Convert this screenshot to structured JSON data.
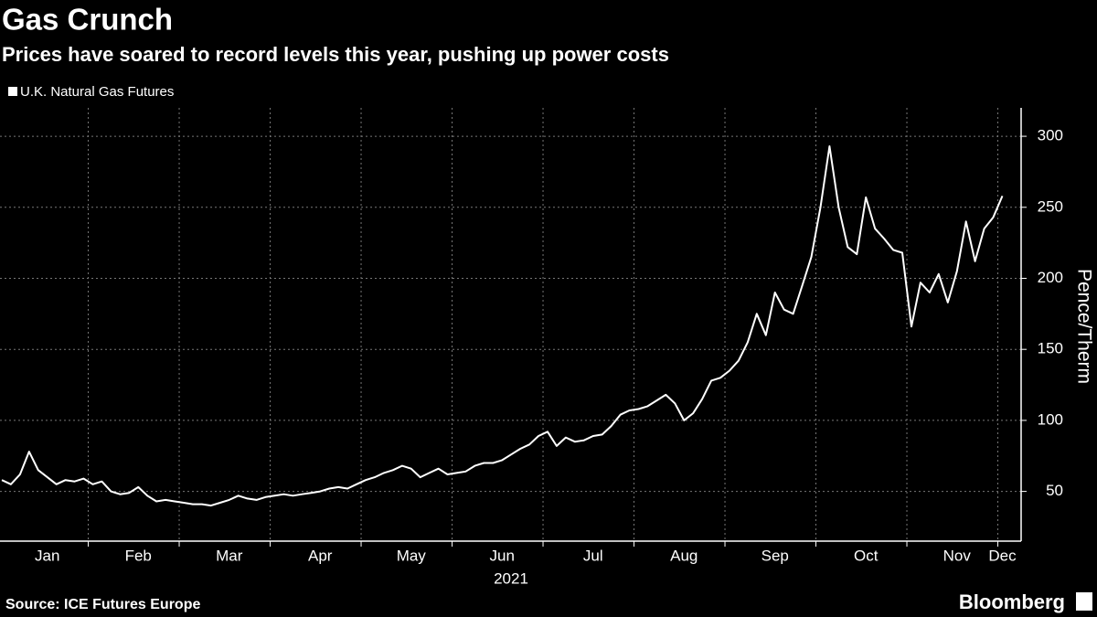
{
  "chart_data": {
    "type": "line",
    "title": "Gas Crunch",
    "subtitle": "Prices have soared to record levels this year, pushing up power costs",
    "xlabel": "2021",
    "ylabel": "Pence/Therm",
    "source": "Source: ICE Futures Europe",
    "brand": "Bloomberg",
    "categories": [
      null,
      null,
      null,
      null,
      null,
      "Jan",
      null,
      null,
      null,
      null,
      null,
      null,
      null,
      null,
      null,
      "Feb",
      null,
      null,
      null,
      null,
      null,
      null,
      null,
      null,
      null,
      "Mar",
      null,
      null,
      null,
      null,
      null,
      null,
      null,
      null,
      null,
      "Apr",
      null,
      null,
      null,
      null,
      null,
      null,
      null,
      null,
      null,
      "May",
      null,
      null,
      null,
      null,
      null,
      null,
      null,
      null,
      null,
      "Jun",
      null,
      null,
      null,
      null,
      null,
      null,
      null,
      null,
      null,
      "Jul",
      null,
      null,
      null,
      null,
      null,
      null,
      null,
      null,
      null,
      "Aug",
      null,
      null,
      null,
      null,
      null,
      null,
      null,
      null,
      null,
      "Sep",
      null,
      null,
      null,
      null,
      null,
      null,
      null,
      null,
      null,
      "Oct",
      null,
      null,
      null,
      null,
      null,
      null,
      null,
      null,
      null,
      "Nov",
      null,
      null,
      null,
      null,
      "Dec"
    ],
    "series": [
      {
        "name": "U.K. Natural Gas Futures",
        "color": "#ffffff",
        "values": [
          58,
          55,
          62,
          78,
          65,
          60,
          55,
          58,
          57,
          59,
          55,
          57,
          50,
          48,
          49,
          53,
          47,
          43,
          44,
          43,
          42,
          41,
          41,
          40,
          42,
          44,
          47,
          45,
          44,
          46,
          47,
          48,
          47,
          48,
          49,
          50,
          52,
          53,
          52,
          55,
          58,
          60,
          63,
          65,
          68,
          66,
          60,
          63,
          66,
          62,
          63,
          64,
          68,
          70,
          70,
          72,
          76,
          80,
          83,
          89,
          92,
          82,
          88,
          85,
          86,
          89,
          90,
          96,
          104,
          107,
          108,
          110,
          114,
          118,
          112,
          100,
          105,
          115,
          128,
          130,
          135,
          142,
          155,
          175,
          160,
          190,
          178,
          175,
          195,
          215,
          250,
          293,
          250,
          222,
          217,
          257,
          235,
          228,
          220,
          218,
          166,
          197,
          190,
          203,
          183,
          205,
          240,
          212,
          235,
          243,
          258
        ]
      }
    ],
    "ylim": [
      15,
      320
    ],
    "yticks": [
      50,
      100,
      150,
      200,
      250,
      300
    ],
    "grid": true
  }
}
